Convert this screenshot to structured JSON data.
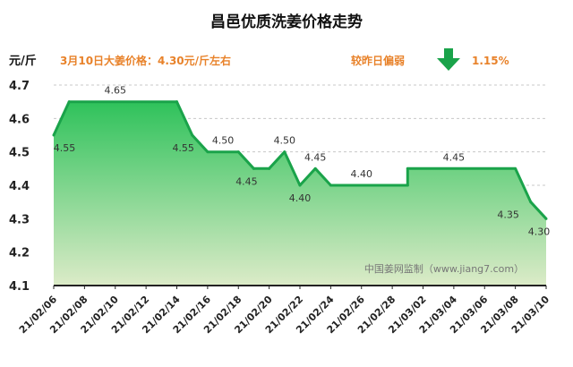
{
  "chart_data": {
    "type": "area",
    "title": "昌邑优质洗姜价格走势",
    "ylabel": "元/斤",
    "subtitle": "3月10日大姜价格：4.30元/斤左右",
    "change_label": "较昨日偏弱",
    "change_value": "1.15%",
    "change_direction": "down",
    "watermark": "中国姜网监制（www.jiang7.com）",
    "ylim": [
      4.1,
      4.7
    ],
    "yticks": [
      "4.1",
      "4.2",
      "4.3",
      "4.4",
      "4.5",
      "4.6",
      "4.7"
    ],
    "grid": true,
    "x_tick_labels": [
      "21/02/06",
      "21/02/08",
      "21/02/10",
      "21/02/12",
      "21/02/14",
      "21/02/16",
      "21/02/18",
      "21/02/20",
      "21/02/22",
      "21/02/24",
      "21/02/26",
      "21/02/28",
      "21/03/02",
      "21/03/04",
      "21/03/06",
      "21/03/08",
      "21/03/10"
    ],
    "x": [
      "21/02/06",
      "21/02/07",
      "21/02/14",
      "21/02/15",
      "21/02/16",
      "21/02/18",
      "21/02/19",
      "21/02/20",
      "21/02/21",
      "21/02/22",
      "21/02/23",
      "21/02/24",
      "21/02/29",
      "21/03/01",
      "21/03/08",
      "21/03/09",
      "21/03/10"
    ],
    "values": [
      4.55,
      4.65,
      4.65,
      4.55,
      4.5,
      4.5,
      4.45,
      4.45,
      4.5,
      4.4,
      4.45,
      4.4,
      4.4,
      4.45,
      4.45,
      4.35,
      4.3
    ],
    "data_labels": [
      {
        "x": "21/02/06",
        "text": "4.55"
      },
      {
        "x": "21/02/10",
        "text": "4.65"
      },
      {
        "x": "21/02/15",
        "text": "4.55"
      },
      {
        "x": "21/02/17",
        "text": "4.50"
      },
      {
        "x": "21/02/19",
        "text": "4.45"
      },
      {
        "x": "21/02/21",
        "text": "4.50"
      },
      {
        "x": "21/02/22",
        "text": "4.40"
      },
      {
        "x": "21/02/23",
        "text": "4.45"
      },
      {
        "x": "21/02/26",
        "text": "4.40"
      },
      {
        "x": "21/03/04",
        "text": "4.45"
      },
      {
        "x": "21/03/08",
        "text": "4.35"
      },
      {
        "x": "21/03/10",
        "text": "4.30"
      }
    ],
    "colors": {
      "line": "#1aa34a",
      "fill_top": "#2fc25b",
      "fill_bottom": "#dcebc8",
      "arrow": "#1aa34a",
      "accent": "#e8822a"
    }
  }
}
